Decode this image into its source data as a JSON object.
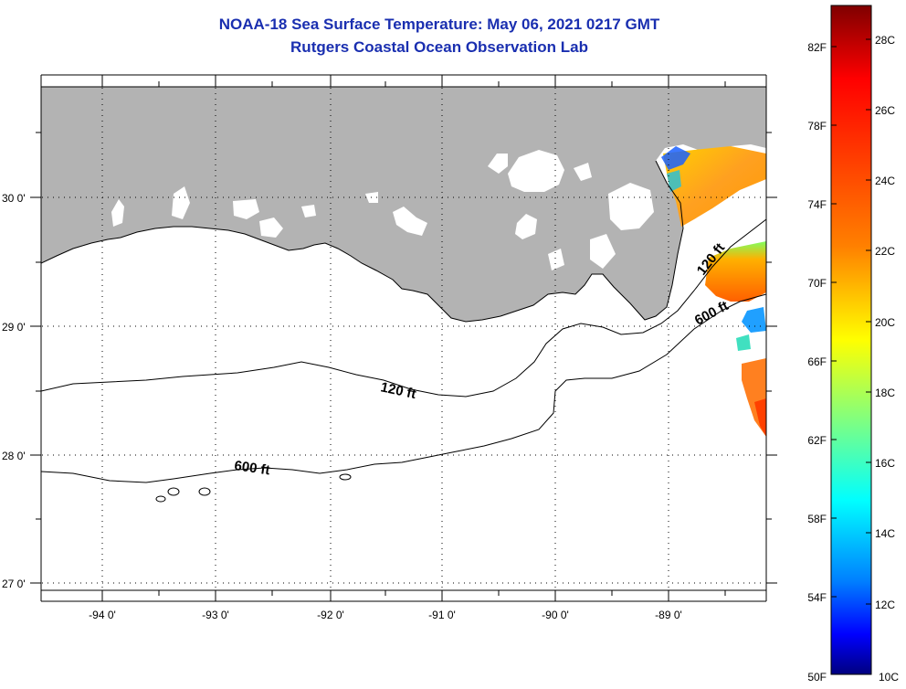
{
  "title": "NOAA-18 Sea Surface Temperature:  May 06, 2021 0217 GMT",
  "subtitle": "Rutgers Coastal Ocean Observation Lab",
  "map": {
    "lon_labels": [
      "-94 0'",
      "-93 0'",
      "-92 0'",
      "-91 0'",
      "-90 0'",
      "-89 0'"
    ],
    "lat_labels": [
      "30 0'",
      "29 0'",
      "28 0'",
      "27 0'"
    ],
    "contours": [
      "120 ft",
      "600 ft",
      "120 ft",
      "600 ft"
    ],
    "colors": {
      "land": "#b3b3b3",
      "water": "#ffffff",
      "contour": "#000000"
    }
  },
  "colorbar": {
    "f_labels": [
      "82F",
      "78F",
      "74F",
      "70F",
      "66F",
      "62F",
      "58F",
      "54F",
      "50F"
    ],
    "c_labels": [
      "28C",
      "26C",
      "24C",
      "22C",
      "20C",
      "18C",
      "16C",
      "14C",
      "12C",
      "10C"
    ],
    "min_c": 10,
    "max_c": 29,
    "colors": [
      "#7f0000",
      "#ff0000",
      "#ff8000",
      "#ffff00",
      "#80ff80",
      "#00ffff",
      "#0080ff",
      "#0000ff",
      "#00007f"
    ]
  },
  "title_color": "#1a2fb0"
}
